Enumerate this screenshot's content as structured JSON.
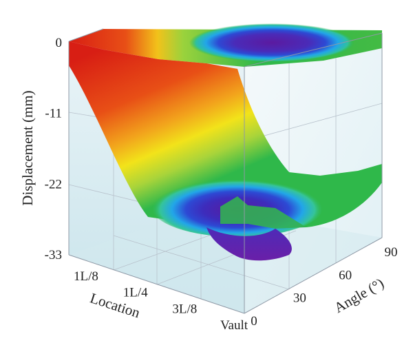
{
  "chart_data": {
    "type": "surface3d",
    "title": "",
    "zlabel": "Displacement (mm)",
    "xlabel": "Location",
    "ylabel": "Angle (°)",
    "z_ticks": [
      "0",
      "-11",
      "-22",
      "-33"
    ],
    "z_tick_values": [
      0,
      -11,
      -22,
      -33
    ],
    "x_ticks": [
      "1L/8",
      "1L/4",
      "3L/8",
      "Vault"
    ],
    "y_ticks": [
      "0",
      "30",
      "60",
      "90"
    ],
    "y_tick_values": [
      0,
      30,
      60,
      90
    ],
    "zlim": [
      -33,
      0
    ],
    "ylim": [
      0,
      90
    ],
    "grid": true,
    "colormap": [
      "#6a1fa8",
      "#2230c8",
      "#22a6e8",
      "#2fb84a",
      "#f2e31a",
      "#f08a1c",
      "#d81e14"
    ],
    "surface_note_values": {
      "min_displacement_at_vault_angle_0": -31,
      "displacement_at_edge": 0,
      "vault_region_mid_angle": 45
    }
  }
}
